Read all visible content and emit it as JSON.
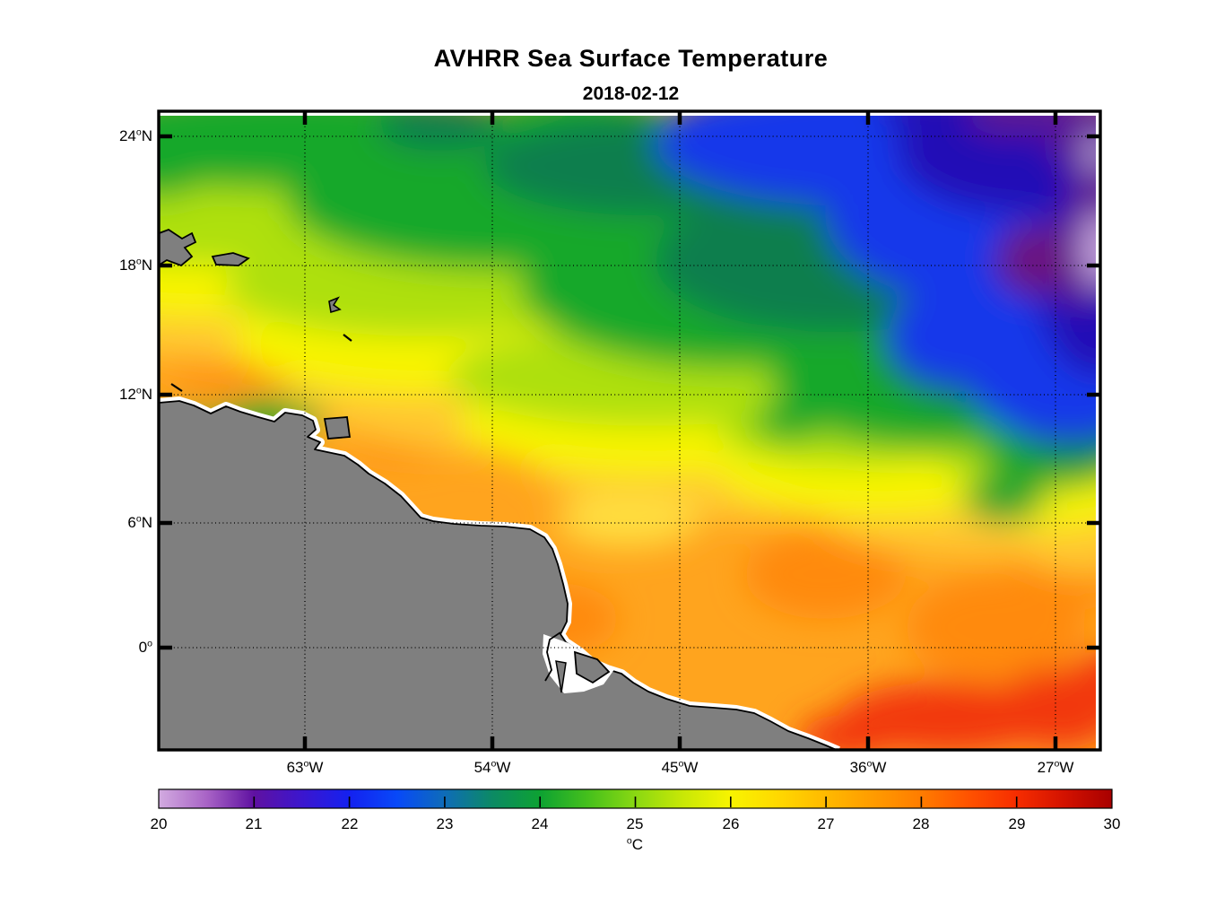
{
  "title": "AVHRR Sea Surface Temperature",
  "subtitle": "2018-02-12",
  "axes": {
    "lat_ticks": [
      {
        "num": "24",
        "deg": "o",
        "hem": "N"
      },
      {
        "num": "18",
        "deg": "o",
        "hem": "N"
      },
      {
        "num": "12",
        "deg": "o",
        "hem": "N"
      },
      {
        "num": "6",
        "deg": "o",
        "hem": "N"
      },
      {
        "num": "0",
        "deg": "o",
        "hem": ""
      }
    ],
    "lon_ticks": [
      {
        "num": "63",
        "deg": "o",
        "hem": "W"
      },
      {
        "num": "54",
        "deg": "o",
        "hem": "W"
      },
      {
        "num": "45",
        "deg": "o",
        "hem": "W"
      },
      {
        "num": "36",
        "deg": "o",
        "hem": "W"
      },
      {
        "num": "27",
        "deg": "o",
        "hem": "W"
      }
    ]
  },
  "colorbar": {
    "tick_labels": [
      "20",
      "21",
      "22",
      "23",
      "24",
      "25",
      "26",
      "27",
      "28",
      "29",
      "30"
    ],
    "unit_deg": "o",
    "unit": "C",
    "min": 20,
    "max": 30,
    "stops": [
      [
        20.0,
        "#D2ABE0"
      ],
      [
        20.5,
        "#A964C6"
      ],
      [
        21.0,
        "#5F11A1"
      ],
      [
        21.5,
        "#3C16CE"
      ],
      [
        22.0,
        "#1421F0"
      ],
      [
        22.5,
        "#0849F8"
      ],
      [
        23.0,
        "#0E6CB8"
      ],
      [
        23.5,
        "#0C8A64"
      ],
      [
        24.0,
        "#0DA232"
      ],
      [
        24.5,
        "#45C01C"
      ],
      [
        25.0,
        "#8AD812"
      ],
      [
        25.5,
        "#C8E806"
      ],
      [
        26.0,
        "#F8F400"
      ],
      [
        26.5,
        "#FFD800"
      ],
      [
        27.0,
        "#FFB900"
      ],
      [
        27.5,
        "#FF9B00"
      ],
      [
        28.0,
        "#FF7C00"
      ],
      [
        28.5,
        "#FF5200"
      ],
      [
        29.0,
        "#F62D00"
      ],
      [
        29.5,
        "#D31200"
      ],
      [
        30.0,
        "#A80000"
      ]
    ]
  },
  "land_color": "#7F7F7F",
  "chart_data": {
    "type": "heatmap",
    "title": "AVHRR Sea Surface Temperature",
    "date": "2018-02-12",
    "units": "degC",
    "colorbar_range": [
      20,
      30
    ],
    "colorbar_position": "bottom",
    "lon_tick_values_degW": [
      63,
      54,
      45,
      36,
      27
    ],
    "lat_tick_values_degN": [
      24,
      18,
      12,
      6,
      0
    ],
    "lon_range_deg": [
      -70.2,
      -24.8
    ],
    "lat_range_deg": [
      -4.8,
      25.2
    ],
    "grid": "dotted black graticule at labeled ticks",
    "no_data": "land shown gray with white coastal fringe",
    "grid_lon_degE": [
      -67.5,
      -62.5,
      -57.5,
      -52.5,
      -47.5,
      -42.5,
      -37.5,
      -32.5,
      -27.5
    ],
    "grid_lat_degN": [
      24,
      21,
      18,
      15,
      12,
      9,
      6,
      3,
      0,
      -3
    ],
    "sst_grid_degC": [
      [
        24.2,
        24.0,
        24.0,
        23.7,
        23.1,
        22.3,
        21.8,
        21.2,
        20.9
      ],
      [
        25.0,
        24.7,
        24.4,
        24.0,
        23.5,
        22.7,
        22.0,
        21.7,
        21.1
      ],
      [
        26.2,
        25.5,
        25.1,
        24.6,
        24.0,
        23.2,
        22.3,
        22.0,
        21.5
      ],
      [
        26.8,
        26.4,
        25.9,
        25.2,
        24.5,
        23.9,
        23.0,
        22.3,
        21.9
      ],
      [
        27.0,
        26.8,
        26.4,
        25.9,
        25.1,
        24.5,
        24.0,
        23.4,
        22.7
      ],
      [
        27.2,
        27.0,
        26.8,
        26.4,
        26.0,
        25.4,
        25.0,
        24.6,
        24.4
      ],
      [
        null,
        27.3,
        27.0,
        26.8,
        26.5,
        26.4,
        26.2,
        26.0,
        25.6
      ],
      [
        null,
        null,
        27.4,
        27.2,
        27.0,
        27.0,
        27.0,
        26.9,
        26.5
      ],
      [
        null,
        null,
        null,
        27.7,
        27.5,
        27.3,
        27.5,
        27.4,
        27.1
      ],
      [
        null,
        null,
        null,
        null,
        28.0,
        28.3,
        28.6,
        28.7,
        28.2
      ]
    ]
  }
}
